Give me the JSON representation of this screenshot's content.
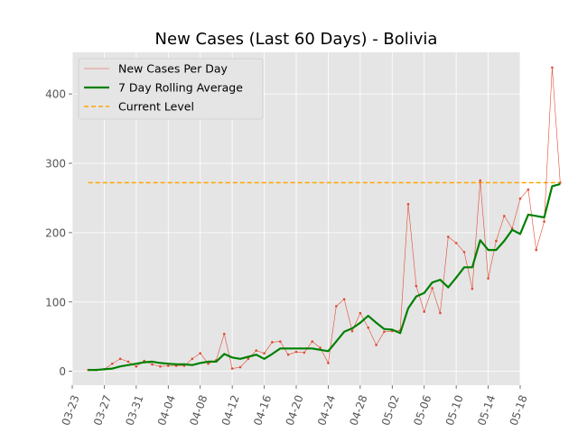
{
  "chart_data": {
    "type": "line",
    "title": "New Cases (Last 60 Days) - Bolivia",
    "xlabel": "",
    "ylabel": "",
    "x_start": "2020-03-25",
    "x_ticks": [
      "03-23",
      "03-27",
      "03-31",
      "04-04",
      "04-08",
      "04-12",
      "04-16",
      "04-20",
      "04-24",
      "04-28",
      "05-02",
      "05-06",
      "05-10",
      "05-14",
      "05-18"
    ],
    "xlim": [
      "2020-03-23",
      "2020-05-18"
    ],
    "y_ticks": [
      0,
      100,
      200,
      300,
      400
    ],
    "ylim": [
      -20,
      460
    ],
    "grid": true,
    "legend_position": "top-left",
    "series": [
      {
        "name": "New Cases Per Day",
        "style": "thin-line-markers",
        "color": "#e24a33",
        "values": [
          2,
          2,
          3,
          11,
          18,
          14,
          7,
          15,
          10,
          7,
          8,
          8,
          8,
          18,
          26,
          11,
          16,
          54,
          4,
          6,
          18,
          30,
          26,
          42,
          43,
          24,
          28,
          27,
          43,
          34,
          12,
          94,
          104,
          58,
          84,
          63,
          38,
          57,
          58,
          59,
          241,
          123,
          86,
          120,
          84,
          194,
          185,
          172,
          119,
          275,
          134,
          188,
          224,
          206,
          249,
          262,
          175,
          216,
          438,
          272
        ]
      },
      {
        "name": "7 Day Rolling Average",
        "style": "thick-line",
        "color": "#008000",
        "values": [
          2,
          2,
          3,
          4,
          7,
          9,
          11,
          13,
          14,
          12,
          11,
          10,
          10,
          9,
          12,
          14,
          14,
          25,
          20,
          18,
          21,
          24,
          18,
          25,
          33,
          33,
          33,
          33,
          33,
          31,
          29,
          43,
          57,
          62,
          70,
          80,
          70,
          61,
          60,
          55,
          91,
          108,
          113,
          128,
          132,
          121,
          135,
          150,
          150,
          189,
          175,
          175,
          188,
          204,
          198,
          226,
          224,
          222,
          267,
          270
        ]
      },
      {
        "name": "Current Level",
        "style": "dashed-line",
        "color": "#ffa500",
        "value": 272
      }
    ]
  }
}
